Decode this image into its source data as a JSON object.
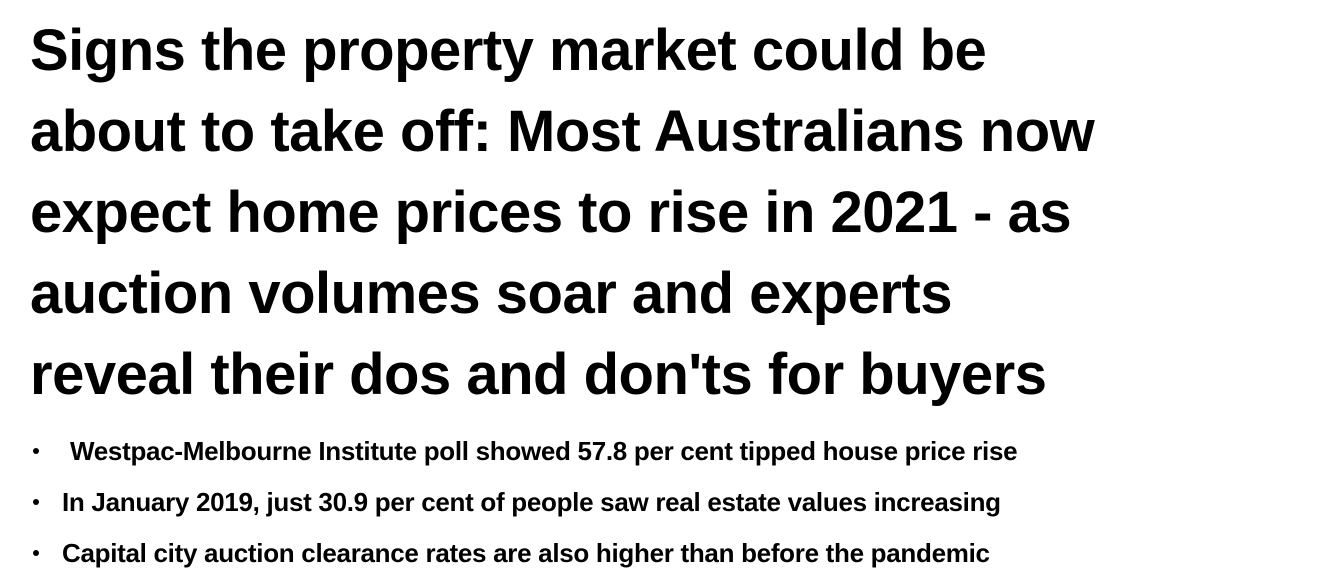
{
  "headline": {
    "lines": [
      "Signs the property market could be",
      "about to take off: Most Australians now",
      "expect home prices to rise in 2021 - as",
      "auction volumes soar and experts",
      "reveal their dos and don'ts for buyers"
    ]
  },
  "bullets": [
    "Westpac-Melbourne Institute poll showed 57.8 per cent tipped house price rise",
    "In January 2019, just 30.9 per cent of people saw real estate values increasing",
    "Capital city auction clearance rates are also higher than before the pandemic"
  ]
}
